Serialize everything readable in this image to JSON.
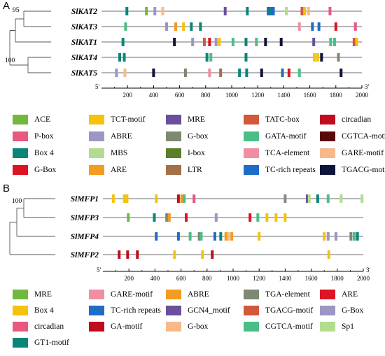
{
  "panels": [
    {
      "label": "A",
      "axis": {
        "min": 0,
        "max": 2000,
        "ticks": [
          200,
          400,
          600,
          800,
          1000,
          1200,
          1400,
          1600,
          1800,
          2000
        ],
        "left_end": "5'",
        "right_end": "3'"
      },
      "bootstrap": [
        "95",
        "100"
      ],
      "genes": [
        {
          "name": "SlKAT2",
          "motifs": [
            {
              "pos": 195,
              "type": "GT1"
            },
            {
              "pos": 345,
              "type": "ACE"
            },
            {
              "pos": 410,
              "type": "ABRE"
            },
            {
              "pos": 470,
              "type": "GAREm"
            },
            {
              "pos": 950,
              "type": "MRE"
            },
            {
              "pos": 1120,
              "type": "Box4"
            },
            {
              "pos": 1280,
              "type": "CTGFB"
            },
            {
              "pos": 1300,
              "type": "GT1"
            },
            {
              "pos": 1320,
              "type": "TCrich"
            },
            {
              "pos": 1420,
              "type": "MBS"
            },
            {
              "pos": 1540,
              "type": "TATC"
            },
            {
              "pos": 1560,
              "type": "TCT"
            },
            {
              "pos": 1590,
              "type": "GAREm"
            },
            {
              "pos": 1755,
              "type": "Pbox"
            }
          ]
        },
        {
          "name": "SlKAT3",
          "motifs": [
            {
              "pos": 185,
              "type": "GATA"
            },
            {
              "pos": 500,
              "type": "ABRE"
            },
            {
              "pos": 570,
              "type": "ARE"
            },
            {
              "pos": 630,
              "type": "TCT"
            },
            {
              "pos": 690,
              "type": "GT1"
            },
            {
              "pos": 760,
              "type": "Box4"
            },
            {
              "pos": 1520,
              "type": "TCA"
            },
            {
              "pos": 1620,
              "type": "TCrich"
            },
            {
              "pos": 1670,
              "type": "TCrich"
            },
            {
              "pos": 1800,
              "type": "GBox"
            },
            {
              "pos": 1950,
              "type": "Pbox"
            }
          ]
        },
        {
          "name": "SlKAT1",
          "motifs": [
            {
              "pos": 165,
              "type": "Box4"
            },
            {
              "pos": 560,
              "type": "TGACG"
            },
            {
              "pos": 700,
              "type": "ABRE"
            },
            {
              "pos": 790,
              "type": "TATC"
            },
            {
              "pos": 830,
              "type": "GBox"
            },
            {
              "pos": 880,
              "type": "ABRE"
            },
            {
              "pos": 905,
              "type": "TCT"
            },
            {
              "pos": 1010,
              "type": "GATA"
            },
            {
              "pos": 1110,
              "type": "Box4"
            },
            {
              "pos": 1190,
              "type": "GATA"
            },
            {
              "pos": 1260,
              "type": "TGACG"
            },
            {
              "pos": 1380,
              "type": "TGACG"
            },
            {
              "pos": 1630,
              "type": "MRE"
            },
            {
              "pos": 1760,
              "type": "GATA"
            },
            {
              "pos": 1790,
              "type": "GATA"
            },
            {
              "pos": 1940,
              "type": "TATC"
            },
            {
              "pos": 1960,
              "type": "TCT"
            }
          ]
        },
        {
          "name": "SlKAT4",
          "motifs": [
            {
              "pos": 140,
              "type": "Box4"
            },
            {
              "pos": 175,
              "type": "Box4"
            },
            {
              "pos": 810,
              "type": "Box4"
            },
            {
              "pos": 840,
              "type": "GATA"
            },
            {
              "pos": 1110,
              "type": "Box4"
            },
            {
              "pos": 1635,
              "type": "TCT"
            },
            {
              "pos": 1660,
              "type": "TCT"
            },
            {
              "pos": 1690,
              "type": "TGACG"
            },
            {
              "pos": 1820,
              "type": "GBoxGray"
            }
          ]
        },
        {
          "name": "SlKAT5",
          "motifs": [
            {
              "pos": 115,
              "type": "ABRE"
            },
            {
              "pos": 180,
              "type": "GAREm"
            },
            {
              "pos": 400,
              "type": "TGACG"
            },
            {
              "pos": 645,
              "type": "GBoxGray"
            },
            {
              "pos": 830,
              "type": "TCA"
            },
            {
              "pos": 915,
              "type": "LTR"
            },
            {
              "pos": 1060,
              "type": "Box4"
            },
            {
              "pos": 1115,
              "type": "Box4"
            },
            {
              "pos": 1230,
              "type": "TGACG"
            },
            {
              "pos": 1390,
              "type": "TCrich"
            },
            {
              "pos": 1440,
              "type": "GBox"
            },
            {
              "pos": 1520,
              "type": "GATA"
            },
            {
              "pos": 1840,
              "type": "TGACG"
            }
          ]
        }
      ],
      "legend_cols": 5,
      "legend": [
        {
          "key": "ACE",
          "label": "ACE",
          "color": "#72b83f"
        },
        {
          "key": "TCT",
          "label": "TCT-motif",
          "color": "#f5c30c"
        },
        {
          "key": "MRE",
          "label": "MRE",
          "color": "#6a4f9c"
        },
        {
          "key": "TATC",
          "label": "TATC-box",
          "color": "#d3583a"
        },
        {
          "key": "circ",
          "label": "circadian",
          "color": "#c00d1e"
        },
        {
          "key": "Pbox",
          "label": "P-box",
          "color": "#e8587f"
        },
        {
          "key": "ABRE",
          "label": "ABRE",
          "color": "#9b97c4"
        },
        {
          "key": "GBoxGray",
          "label": "G-box",
          "color": "#7d8972"
        },
        {
          "key": "GATA",
          "label": "GATA-motif",
          "color": "#49bf87"
        },
        {
          "key": "CGTCA",
          "label": "CGTCA-motif",
          "color": "#5a0a0d"
        },
        {
          "key": "Box4",
          "label": "Box 4",
          "color": "#0a8579"
        },
        {
          "key": "MBS",
          "label": "MBS",
          "color": "#b3dc8e"
        },
        {
          "key": "Ibox",
          "label": "I-box",
          "color": "#5b7e2b"
        },
        {
          "key": "TCA",
          "label": "TCA-element",
          "color": "#ef8fa1"
        },
        {
          "key": "GAREm",
          "label": "GARE-motif",
          "color": "#f7b98a"
        },
        {
          "key": "GBox",
          "label": "G-Box",
          "color": "#dc1426"
        },
        {
          "key": "ARE",
          "label": "ARE",
          "color": "#f39c1f"
        },
        {
          "key": "LTR",
          "label": "LTR",
          "color": "#a37048"
        },
        {
          "key": "TCrich",
          "label": "TC-rich repeats",
          "color": "#1f6cc6"
        },
        {
          "key": "TGACG",
          "label": "TGACG-motif",
          "color": "#0f1538"
        },
        {
          "key": "GT1",
          "label": "",
          "color": "#0a8579"
        },
        {
          "key": "CTGFB",
          "label": "",
          "color": "#1f6cc6"
        }
      ]
    },
    {
      "label": "B",
      "axis": {
        "min": 0,
        "max": 2000,
        "ticks": [
          200,
          400,
          600,
          800,
          1000,
          1200,
          1400,
          1600,
          1800,
          2000
        ],
        "left_end": "5'",
        "right_end": "3'"
      },
      "bootstrap": [
        "100"
      ],
      "genes": [
        {
          "name": "SlMFP1",
          "motifs": [
            {
              "pos": 80,
              "type": "Box4"
            },
            {
              "pos": 165,
              "type": "Box4"
            },
            {
              "pos": 185,
              "type": "Box4"
            },
            {
              "pos": 410,
              "type": "Box4"
            },
            {
              "pos": 580,
              "type": "GAm"
            },
            {
              "pos": 605,
              "type": "ABRE2"
            },
            {
              "pos": 625,
              "type": "CGTCA"
            },
            {
              "pos": 700,
              "type": "circ"
            },
            {
              "pos": 1400,
              "type": "ARE2"
            },
            {
              "pos": 1570,
              "type": "GCN4"
            },
            {
              "pos": 1585,
              "type": "Sp1"
            },
            {
              "pos": 1650,
              "type": "GT1"
            },
            {
              "pos": 1730,
              "type": "CGTCA"
            },
            {
              "pos": 1830,
              "type": "Sp1"
            },
            {
              "pos": 1990,
              "type": "Sp1"
            }
          ]
        },
        {
          "name": "SlMFP3",
          "motifs": [
            {
              "pos": 195,
              "type": "ARE_m"
            },
            {
              "pos": 395,
              "type": "GT1"
            },
            {
              "pos": 490,
              "type": "TGAel"
            },
            {
              "pos": 510,
              "type": "ABRE2"
            },
            {
              "pos": 640,
              "type": "ARE"
            },
            {
              "pos": 870,
              "type": "GBoxB"
            },
            {
              "pos": 1130,
              "type": "ARE"
            },
            {
              "pos": 1190,
              "type": "CGTCA"
            },
            {
              "pos": 1260,
              "type": "Box4"
            },
            {
              "pos": 1330,
              "type": "Box4"
            },
            {
              "pos": 1400,
              "type": "Box4"
            }
          ]
        },
        {
          "name": "SlMFP4",
          "motifs": [
            {
              "pos": 410,
              "type": "TCrich"
            },
            {
              "pos": 580,
              "type": "TCrich"
            },
            {
              "pos": 670,
              "type": "CGTCA"
            },
            {
              "pos": 740,
              "type": "TGAel"
            },
            {
              "pos": 755,
              "type": "CGTCA"
            },
            {
              "pos": 860,
              "type": "TCrich"
            },
            {
              "pos": 905,
              "type": "GT1"
            },
            {
              "pos": 945,
              "type": "ABRE2"
            },
            {
              "pos": 965,
              "type": "Gbox2"
            },
            {
              "pos": 990,
              "type": "ABRE2"
            },
            {
              "pos": 1200,
              "type": "Box4"
            },
            {
              "pos": 1700,
              "type": "Box4"
            },
            {
              "pos": 1730,
              "type": "GBoxB"
            },
            {
              "pos": 1790,
              "type": "GBoxB"
            },
            {
              "pos": 1905,
              "type": "TGAel"
            },
            {
              "pos": 1930,
              "type": "CGTCA"
            },
            {
              "pos": 1955,
              "type": "GT1"
            }
          ]
        },
        {
          "name": "SlMFP2",
          "motifs": [
            {
              "pos": 125,
              "type": "GAm"
            },
            {
              "pos": 190,
              "type": "GAm"
            },
            {
              "pos": 265,
              "type": "GAm"
            },
            {
              "pos": 550,
              "type": "Box4"
            },
            {
              "pos": 765,
              "type": "Box4"
            },
            {
              "pos": 840,
              "type": "GAm"
            },
            {
              "pos": 1735,
              "type": "Box4"
            }
          ]
        }
      ],
      "legend_cols": 5,
      "legend": [
        {
          "key": "MREg",
          "label": "MRE",
          "color": "#72b83f"
        },
        {
          "key": "GAREm2",
          "label": "GARE-motif",
          "color": "#ef8fa1"
        },
        {
          "key": "ABRE2",
          "label": "ABRE",
          "color": "#f39c1f"
        },
        {
          "key": "TGAel",
          "label": "TGA-element",
          "color": "#7d8972"
        },
        {
          "key": "ARE",
          "label": "ARE",
          "color": "#dc1426"
        },
        {
          "key": "Box4",
          "label": "Box 4",
          "color": "#f5c30c"
        },
        {
          "key": "TCrich",
          "label": "TC-rich repeats",
          "color": "#1f6cc6"
        },
        {
          "key": "GCN4",
          "label": "GCN4_motif",
          "color": "#6a4f9c"
        },
        {
          "key": "TGACG2",
          "label": "TGACG-motif",
          "color": "#d3583a"
        },
        {
          "key": "GBoxB",
          "label": "G-Box",
          "color": "#9b97c4"
        },
        {
          "key": "circ",
          "label": "circadian",
          "color": "#e8587f"
        },
        {
          "key": "GAm",
          "label": "GA-motif",
          "color": "#c00d1e"
        },
        {
          "key": "Gbox2",
          "label": "G-box",
          "color": "#f7b98a"
        },
        {
          "key": "CGTCA",
          "label": "CGTCA-motif",
          "color": "#49bf87"
        },
        {
          "key": "Sp1",
          "label": "Sp1",
          "color": "#b3dc8e"
        },
        {
          "key": "GT1",
          "label": "GT1-motif",
          "color": "#0a8579"
        },
        {
          "key": "ARE_m",
          "label": "",
          "color": "#72b83f"
        }
      ]
    }
  ]
}
